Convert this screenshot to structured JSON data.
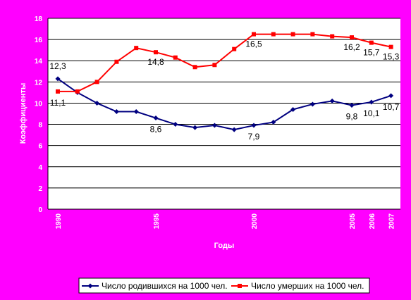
{
  "chart_data": {
    "type": "line",
    "xlabel": "Годы",
    "ylabel": "Коэффициенты",
    "ylim": [
      0,
      18
    ],
    "yticks": [
      "0",
      "2",
      "4",
      "6",
      "8",
      "10",
      "12",
      "14",
      "16",
      "18"
    ],
    "x": [
      1990,
      1991,
      1992,
      1993,
      1994,
      1995,
      1996,
      1997,
      1998,
      1999,
      2000,
      2001,
      2002,
      2003,
      2004,
      2005,
      2006,
      2007
    ],
    "xticks": [
      {
        "year": 1990,
        "label": "1990"
      },
      {
        "year": 1995,
        "label": "1995"
      },
      {
        "year": 2000,
        "label": "2000"
      },
      {
        "year": 2005,
        "label": "2005"
      },
      {
        "year": 2006,
        "label": "2006"
      },
      {
        "year": 2007,
        "label": "2007"
      }
    ],
    "grid": true,
    "legend_position": "bottom",
    "series": [
      {
        "name": "Число родившихся на 1000 чел.",
        "color": "#000080",
        "marker": "diamond",
        "values": [
          12.3,
          11.0,
          10.0,
          9.2,
          9.2,
          8.6,
          8.0,
          7.7,
          7.9,
          7.5,
          7.9,
          8.2,
          9.4,
          9.9,
          10.2,
          9.8,
          10.1,
          10.7
        ],
        "labels": [
          {
            "year": 1990,
            "text": "12,3"
          },
          {
            "year": 1995,
            "text": "8,6"
          },
          {
            "year": 2000,
            "text": "7,9"
          },
          {
            "year": 2005,
            "text": "9,8"
          },
          {
            "year": 2006,
            "text": "10,1"
          },
          {
            "year": 2007,
            "text": "10,7"
          }
        ]
      },
      {
        "name": "Число умерших на 1000 чел.",
        "color": "#ff0000",
        "marker": "square",
        "values": [
          11.1,
          11.1,
          12.0,
          13.9,
          15.2,
          14.8,
          14.3,
          13.4,
          13.6,
          15.1,
          16.5,
          16.5,
          16.5,
          16.5,
          16.3,
          16.2,
          15.7,
          15.3
        ],
        "labels": [
          {
            "year": 1990,
            "text": "11,1"
          },
          {
            "year": 1995,
            "text": "14,8"
          },
          {
            "year": 2000,
            "text": "16,5"
          },
          {
            "year": 2005,
            "text": "16,2"
          },
          {
            "year": 2006,
            "text": "15,7"
          },
          {
            "year": 2007,
            "text": "15,3"
          }
        ]
      }
    ]
  }
}
